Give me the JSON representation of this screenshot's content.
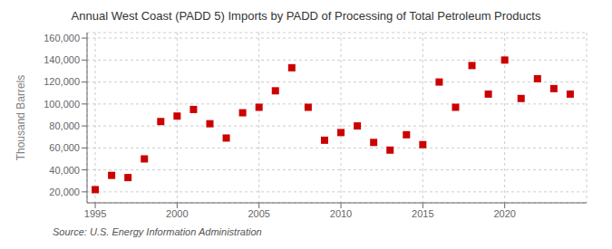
{
  "chart_data": {
    "type": "scatter",
    "title": "Annual West Coast (PADD 5) Imports by PADD of Processing of Total Petroleum Products",
    "ylabel": "Thousand Barrels",
    "annotation": "Source: U.S. Energy Information Administration",
    "x": [
      1995,
      1996,
      1997,
      1998,
      1999,
      2000,
      2001,
      2002,
      2003,
      2004,
      2005,
      2006,
      2007,
      2008,
      2009,
      2010,
      2011,
      2012,
      2013,
      2014,
      2015,
      2016,
      2017,
      2018,
      2019,
      2020,
      2021,
      2022,
      2023,
      2024
    ],
    "values": [
      22000,
      35000,
      33000,
      50000,
      84000,
      89000,
      95000,
      82000,
      69000,
      92000,
      97000,
      112000,
      133000,
      97000,
      67000,
      74000,
      80000,
      65000,
      58000,
      72000,
      63000,
      120000,
      97000,
      135000,
      109000,
      140000,
      105000,
      123000,
      114000,
      109000
    ],
    "color": "#cc0000",
    "marker": "square",
    "xlim": [
      1994.5,
      2025
    ],
    "xticks": [
      1995,
      2000,
      2005,
      2010,
      2015,
      2020
    ],
    "ylim": [
      10000,
      165000
    ],
    "yticks": [
      {
        "value": 20000,
        "label": "20,000"
      },
      {
        "value": 40000,
        "label": "40,000"
      },
      {
        "value": 60000,
        "label": "60,000"
      },
      {
        "value": 80000,
        "label": "80,000"
      },
      {
        "value": 100000,
        "label": "100,000"
      },
      {
        "value": 120000,
        "label": "120,000"
      },
      {
        "value": 140000,
        "label": "140,000"
      },
      {
        "value": 160000,
        "label": "160,000"
      }
    ],
    "grid": true
  }
}
